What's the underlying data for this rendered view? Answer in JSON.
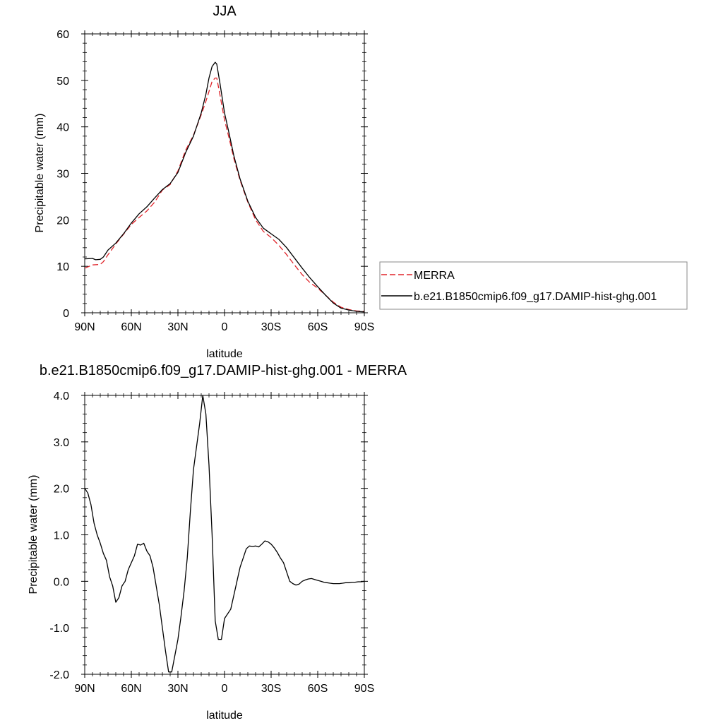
{
  "chart_data": [
    {
      "type": "line",
      "title": "JJA",
      "xlabel": "latitude",
      "ylabel": "Precipitable water (mm)",
      "xlim": [
        90,
        -90
      ],
      "ylim": [
        0,
        60
      ],
      "x_ticks": [
        90,
        60,
        30,
        0,
        -30,
        -60,
        -90
      ],
      "x_tick_labels": [
        "90N",
        "60N",
        "30N",
        "0",
        "30S",
        "60S",
        "90S"
      ],
      "y_ticks": [
        0,
        10,
        20,
        30,
        40,
        50,
        60
      ],
      "y_tick_labels": [
        "0",
        "10",
        "20",
        "30",
        "40",
        "50",
        "60"
      ],
      "legend_position": "outside-right",
      "series": [
        {
          "name": "MERRA",
          "color": "#e0242a",
          "style": "dashed",
          "x": [
            90,
            85,
            80,
            78,
            75,
            70,
            65,
            60,
            55,
            50,
            45,
            40,
            35,
            30,
            25,
            20,
            15,
            12,
            10,
            8,
            6,
            5,
            3,
            0,
            -3,
            -6,
            -10,
            -15,
            -20,
            -25,
            -30,
            -35,
            -40,
            -45,
            -50,
            -55,
            -60,
            -65,
            -70,
            -75,
            -80,
            -85,
            -90
          ],
          "values": [
            9.6,
            10.3,
            10.4,
            11.0,
            12.5,
            14.8,
            16.9,
            19.0,
            20.5,
            21.9,
            23.8,
            26.4,
            27.6,
            30.5,
            35.0,
            38.2,
            42.6,
            45.5,
            47.6,
            49.8,
            50.5,
            50.5,
            47.0,
            41.5,
            37.5,
            33.2,
            28.5,
            23.8,
            20.0,
            17.5,
            16.2,
            14.5,
            12.5,
            10.3,
            8.2,
            6.5,
            5.3,
            3.8,
            2.3,
            1.2,
            0.7,
            0.4,
            0.3
          ]
        },
        {
          "name": "b.e21.B1850cmip6.f09_g17.DAMIP-hist-ghg.001",
          "color": "#000000",
          "style": "solid",
          "x": [
            90,
            85,
            83,
            80,
            78,
            75,
            70,
            65,
            60,
            55,
            50,
            45,
            40,
            35,
            30,
            25,
            20,
            15,
            12,
            10,
            8,
            6,
            5,
            3,
            0,
            -3,
            -6,
            -10,
            -15,
            -20,
            -25,
            -30,
            -35,
            -40,
            -45,
            -50,
            -55,
            -60,
            -65,
            -70,
            -75,
            -80,
            -85,
            -90
          ],
          "values": [
            11.6,
            11.7,
            11.4,
            11.5,
            12.0,
            13.5,
            15.0,
            17.0,
            19.3,
            21.3,
            22.8,
            24.7,
            26.5,
            27.8,
            30.2,
            34.5,
            38.0,
            43.0,
            47.0,
            50.5,
            53.0,
            53.9,
            53.5,
            49.5,
            43.0,
            38.5,
            33.8,
            28.8,
            24.0,
            20.5,
            18.2,
            17.0,
            15.8,
            14.0,
            11.8,
            9.6,
            7.5,
            5.6,
            3.8,
            2.1,
            1.0,
            0.6,
            0.3,
            0.2
          ]
        }
      ]
    },
    {
      "type": "line",
      "title": "b.e21.B1850cmip6.f09_g17.DAMIP-hist-ghg.001 - MERRA",
      "xlabel": "latitude",
      "ylabel": "Precipitable water (mm)",
      "xlim": [
        90,
        -90
      ],
      "ylim": [
        -2.0,
        4.0
      ],
      "x_ticks": [
        90,
        60,
        30,
        0,
        -30,
        -60,
        -90
      ],
      "x_tick_labels": [
        "90N",
        "60N",
        "30N",
        "0",
        "30S",
        "60S",
        "90S"
      ],
      "y_ticks": [
        -2.0,
        -1.0,
        0.0,
        1.0,
        2.0,
        3.0,
        4.0
      ],
      "y_tick_labels": [
        "-2.0",
        "-1.0",
        "0.0",
        "1.0",
        "2.0",
        "3.0",
        "4.0"
      ],
      "series": [
        {
          "color": "#000000",
          "style": "solid",
          "x": [
            90,
            88,
            86,
            84,
            82,
            80,
            78,
            76,
            74,
            72,
            70,
            68,
            66,
            64,
            62,
            60,
            58,
            56,
            54,
            52,
            50,
            48,
            46,
            44,
            42,
            40,
            38,
            36,
            34,
            32,
            30,
            28,
            26,
            24,
            22,
            20,
            18,
            16,
            14,
            12,
            10,
            8,
            6,
            4,
            2,
            0,
            -2,
            -4,
            -6,
            -8,
            -10,
            -12,
            -14,
            -16,
            -18,
            -20,
            -22,
            -24,
            -26,
            -28,
            -30,
            -32,
            -34,
            -36,
            -38,
            -40,
            -42,
            -44,
            -46,
            -48,
            -50,
            -52,
            -54,
            -56,
            -58,
            -60,
            -62,
            -64,
            -66,
            -68,
            -70,
            -72,
            -74,
            -76,
            -78,
            -80,
            -82,
            -84,
            -86,
            -88,
            -90
          ],
          "values": [
            2.0,
            1.9,
            1.65,
            1.25,
            1.0,
            0.82,
            0.6,
            0.45,
            0.1,
            -0.1,
            -0.45,
            -0.35,
            -0.1,
            0.0,
            0.25,
            0.4,
            0.55,
            0.8,
            0.78,
            0.82,
            0.65,
            0.55,
            0.3,
            -0.1,
            -0.5,
            -1.0,
            -1.5,
            -1.95,
            -1.95,
            -1.6,
            -1.25,
            -0.75,
            -0.2,
            0.5,
            1.5,
            2.4,
            2.9,
            3.4,
            4.0,
            3.6,
            2.5,
            1.0,
            -0.85,
            -1.25,
            -1.25,
            -0.8,
            -0.7,
            -0.6,
            -0.3,
            0.0,
            0.3,
            0.5,
            0.7,
            0.76,
            0.75,
            0.76,
            0.74,
            0.8,
            0.87,
            0.85,
            0.8,
            0.72,
            0.62,
            0.5,
            0.4,
            0.2,
            0.0,
            -0.05,
            -0.08,
            -0.06,
            0.0,
            0.03,
            0.05,
            0.06,
            0.04,
            0.02,
            0.0,
            -0.02,
            -0.03,
            -0.04,
            -0.05,
            -0.05,
            -0.05,
            -0.04,
            -0.03,
            -0.03,
            -0.02,
            -0.02,
            -0.01,
            -0.01,
            0.0
          ]
        }
      ]
    }
  ]
}
